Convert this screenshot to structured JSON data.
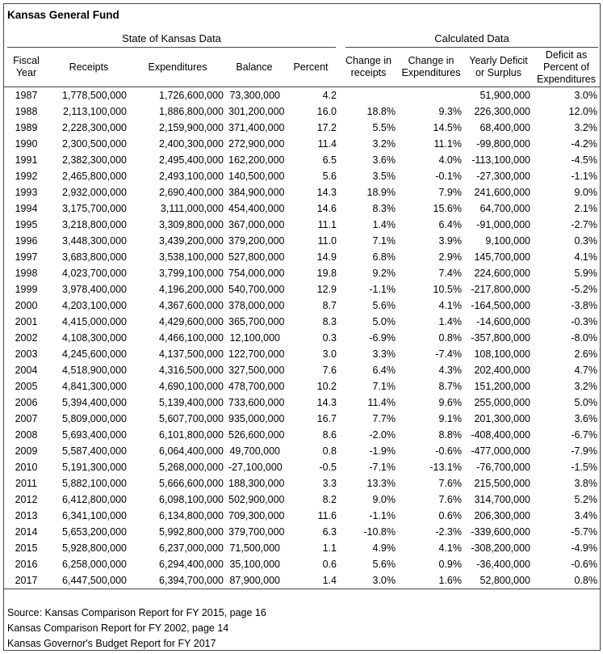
{
  "title": "Kansas General Fund",
  "table": {
    "groups": [
      "State of Kansas Data",
      "Calculated Data"
    ],
    "columns": [
      "Fiscal Year",
      "Receipts",
      "Expenditures",
      "Balance",
      "Percent",
      "Change in receipts",
      "Change in Expenditures",
      "Yearly Deficit or Surplus",
      "Deficit as Percent of Expenditures"
    ],
    "rows": [
      [
        "1987",
        "1,778,500,000",
        "1,726,600,000",
        "73,300,000",
        "4.2",
        null,
        null,
        "51,900,000",
        "3.0%"
      ],
      [
        "1988",
        "2,113,100,000",
        "1,886,800,000",
        "301,200,000",
        "16.0",
        "18.8%",
        "9.3%",
        "226,300,000",
        "12.0%"
      ],
      [
        "1989",
        "2,228,300,000",
        "2,159,900,000",
        "371,400,000",
        "17.2",
        "5.5%",
        "14.5%",
        "68,400,000",
        "3.2%"
      ],
      [
        "1990",
        "2,300,500,000",
        "2,400,300,000",
        "272,900,000",
        "11.4",
        "3.2%",
        "11.1%",
        "-99,800,000",
        "-4.2%"
      ],
      [
        "1991",
        "2,382,300,000",
        "2,495,400,000",
        "162,200,000",
        "6.5",
        "3.6%",
        "4.0%",
        "-113,100,000",
        "-4.5%"
      ],
      [
        "1992",
        "2,465,800,000",
        "2,493,100,000",
        "140,500,000",
        "5.6",
        "3.5%",
        "-0.1%",
        "-27,300,000",
        "-1.1%"
      ],
      [
        "1993",
        "2,932,000,000",
        "2,690,400,000",
        "384,900,000",
        "14.3",
        "18.9%",
        "7.9%",
        "241,600,000",
        "9.0%"
      ],
      [
        "1994",
        "3,175,700,000",
        "3,111,000,000",
        "454,400,000",
        "14.6",
        "8.3%",
        "15.6%",
        "64,700,000",
        "2.1%"
      ],
      [
        "1995",
        "3,218,800,000",
        "3,309,800,000",
        "367,000,000",
        "11.1",
        "1.4%",
        "6.4%",
        "-91,000,000",
        "-2.7%"
      ],
      [
        "1996",
        "3,448,300,000",
        "3,439,200,000",
        "379,200,000",
        "11.0",
        "7.1%",
        "3.9%",
        "9,100,000",
        "0.3%"
      ],
      [
        "1997",
        "3,683,800,000",
        "3,538,100,000",
        "527,800,000",
        "14.9",
        "6.8%",
        "2.9%",
        "145,700,000",
        "4.1%"
      ],
      [
        "1998",
        "4,023,700,000",
        "3,799,100,000",
        "754,000,000",
        "19.8",
        "9.2%",
        "7.4%",
        "224,600,000",
        "5.9%"
      ],
      [
        "1999",
        "3,978,400,000",
        "4,196,200,000",
        "540,700,000",
        "12.9",
        "-1.1%",
        "10.5%",
        "-217,800,000",
        "-5.2%"
      ],
      [
        "2000",
        "4,203,100,000",
        "4,367,600,000",
        "378,000,000",
        "8.7",
        "5.6%",
        "4.1%",
        "-164,500,000",
        "-3.8%"
      ],
      [
        "2001",
        "4,415,000,000",
        "4,429,600,000",
        "365,700,000",
        "8.3",
        "5.0%",
        "1.4%",
        "-14,600,000",
        "-0.3%"
      ],
      [
        "2002",
        "4,108,300,000",
        "4,466,100,000",
        "12,100,000",
        "0.3",
        "-6.9%",
        "0.8%",
        "-357,800,000",
        "-8.0%"
      ],
      [
        "2003",
        "4,245,600,000",
        "4,137,500,000",
        "122,700,000",
        "3.0",
        "3.3%",
        "-7.4%",
        "108,100,000",
        "2.6%"
      ],
      [
        "2004",
        "4,518,900,000",
        "4,316,500,000",
        "327,500,000",
        "7.6",
        "6.4%",
        "4.3%",
        "202,400,000",
        "4.7%"
      ],
      [
        "2005",
        "4,841,300,000",
        "4,690,100,000",
        "478,700,000",
        "10.2",
        "7.1%",
        "8.7%",
        "151,200,000",
        "3.2%"
      ],
      [
        "2006",
        "5,394,400,000",
        "5,139,400,000",
        "733,600,000",
        "14.3",
        "11.4%",
        "9.6%",
        "255,000,000",
        "5.0%"
      ],
      [
        "2007",
        "5,809,000,000",
        "5,607,700,000",
        "935,000,000",
        "16.7",
        "7.7%",
        "9.1%",
        "201,300,000",
        "3.6%"
      ],
      [
        "2008",
        "5,693,400,000",
        "6,101,800,000",
        "526,600,000",
        "8.6",
        "-2.0%",
        "8.8%",
        "-408,400,000",
        "-6.7%"
      ],
      [
        "2009",
        "5,587,400,000",
        "6,064,400,000",
        "49,700,000",
        "0.8",
        "-1.9%",
        "-0.6%",
        "-477,000,000",
        "-7.9%"
      ],
      [
        "2010",
        "5,191,300,000",
        "5,268,000,000",
        "-27,100,000",
        "-0.5",
        "-7.1%",
        "-13.1%",
        "-76,700,000",
        "-1.5%"
      ],
      [
        "2011",
        "5,882,100,000",
        "5,666,600,000",
        "188,300,000",
        "3.3",
        "13.3%",
        "7.6%",
        "215,500,000",
        "3.8%"
      ],
      [
        "2012",
        "6,412,800,000",
        "6,098,100,000",
        "502,900,000",
        "8.2",
        "9.0%",
        "7.6%",
        "314,700,000",
        "5.2%"
      ],
      [
        "2013",
        "6,341,100,000",
        "6,134,800,000",
        "709,300,000",
        "11.6",
        "-1.1%",
        "0.6%",
        "206,300,000",
        "3.4%"
      ],
      [
        "2014",
        "5,653,200,000",
        "5,992,800,000",
        "379,700,000",
        "6.3",
        "-10.8%",
        "-2.3%",
        "-339,600,000",
        "-5.7%"
      ],
      [
        "2015",
        "5,928,800,000",
        "6,237,000,000",
        "71,500,000",
        "1.1",
        "4.9%",
        "4.1%",
        "-308,200,000",
        "-4.9%"
      ],
      [
        "2016",
        "6,258,000,000",
        "6,294,400,000",
        "35,100,000",
        "0.6",
        "5.6%",
        "0.9%",
        "-36,400,000",
        "-0.6%"
      ],
      [
        "2017",
        "6,447,500,000",
        "6,394,700,000",
        "87,900,000",
        "1.4",
        "3.0%",
        "1.6%",
        "52,800,000",
        "0.8%"
      ]
    ]
  },
  "sources": [
    "Source: Kansas Comparison Report for FY 2015, page 16",
    "Kansas Comparison Report for FY 2002, page 14",
    "Kansas Governor's Budget Report for FY 2017"
  ]
}
